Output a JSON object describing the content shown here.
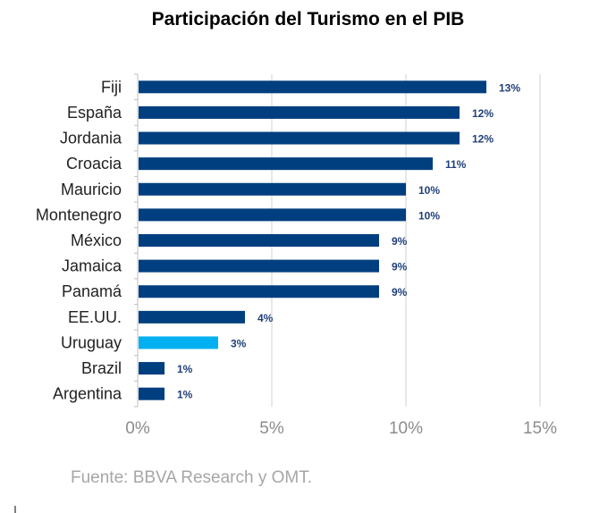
{
  "chart_data": {
    "type": "bar",
    "orientation": "horizontal",
    "title": "Participación del Turismo en el PIB",
    "categories": [
      "Fiji",
      "España",
      "Jordania",
      "Croacia",
      "Mauricio",
      "Montenegro",
      "México",
      "Jamaica",
      "Panamá",
      "EE.UU.",
      "Uruguay",
      "Brazil",
      "Argentina"
    ],
    "values": [
      13,
      12,
      12,
      11,
      10,
      10,
      9,
      9,
      9,
      4,
      3,
      1,
      1
    ],
    "data_labels": [
      "13%",
      "12%",
      "12%",
      "11%",
      "10%",
      "10%",
      "9%",
      "9%",
      "9%",
      "4%",
      "3%",
      "1%",
      "1%"
    ],
    "xlim": [
      0,
      15
    ],
    "xticks": [
      0,
      5,
      10,
      15
    ],
    "xtick_labels": [
      "0%",
      "5%",
      "10%",
      "15%"
    ],
    "xlabel": "",
    "ylabel": "",
    "grid": "vertical",
    "colors": {
      "default": "#003f7f",
      "highlight": "#00b0f0",
      "highlight_category": "Uruguay",
      "grid": "#d0d0d0",
      "label": "#1f3f7a"
    },
    "source": "Fuente: BBVA Research y OMT."
  }
}
